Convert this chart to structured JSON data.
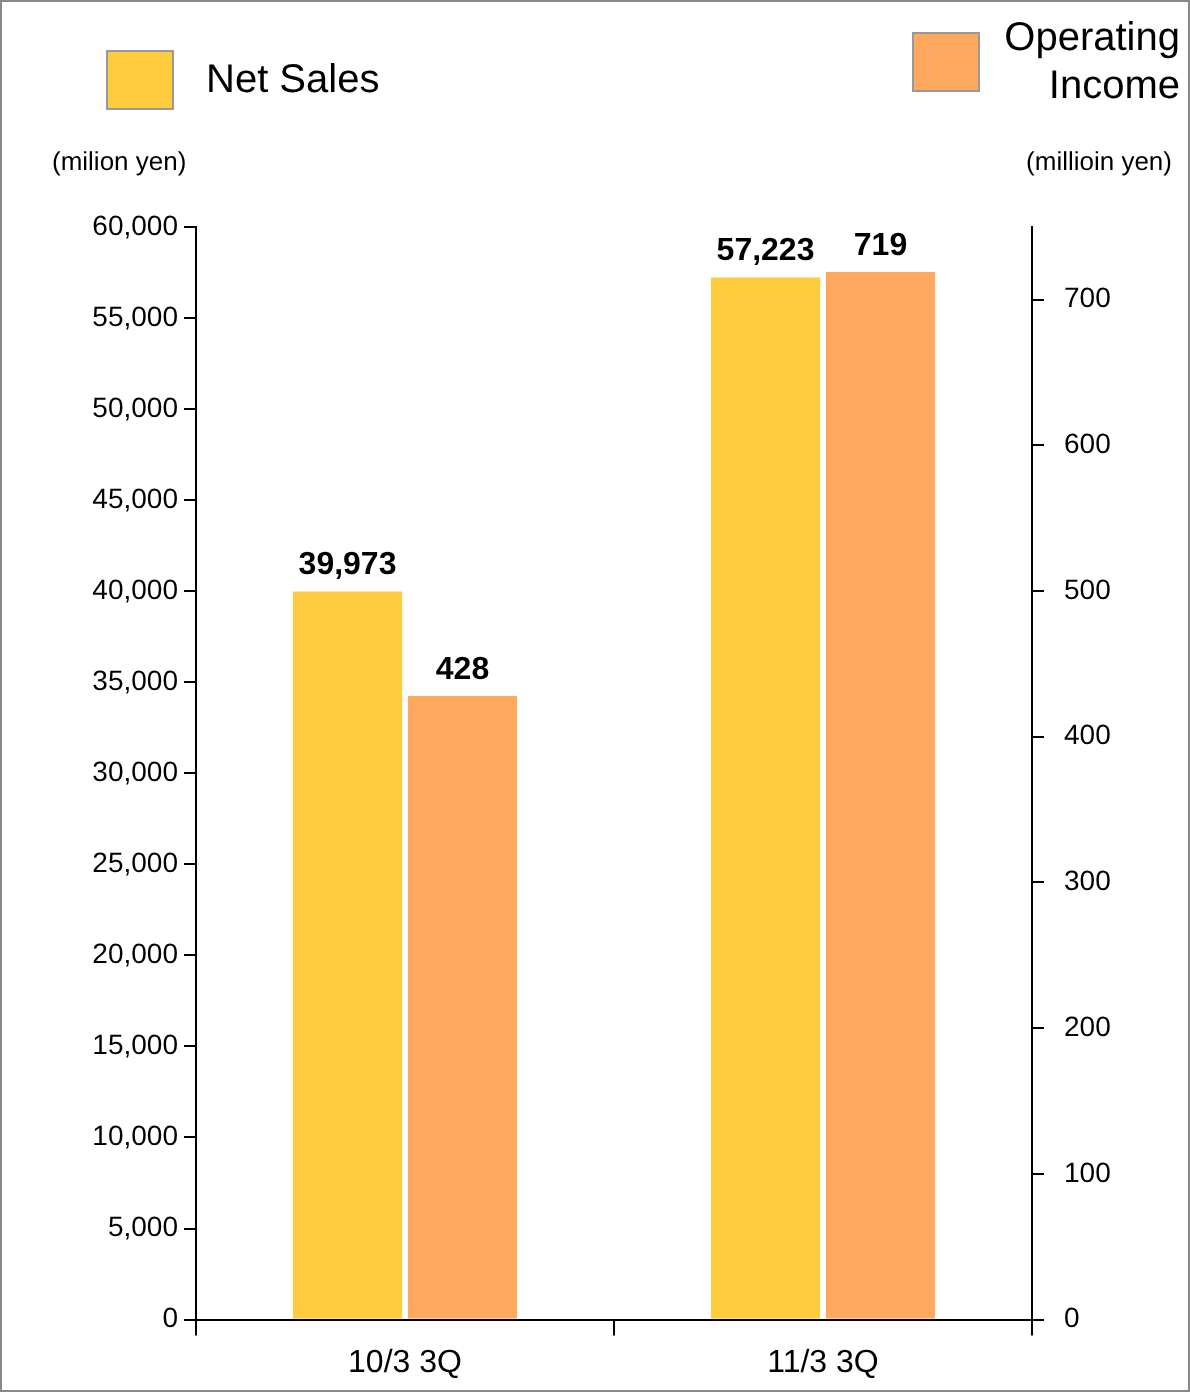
{
  "chart_data": {
    "type": "bar",
    "categories": [
      "10/3 3Q",
      "11/3 3Q"
    ],
    "series": [
      {
        "name": "Net Sales",
        "color": "#ffcc40",
        "values": [
          39973,
          57223
        ],
        "value_labels": [
          "39,973",
          "57,223"
        ]
      },
      {
        "name": "Operating Income",
        "color": "#ffa860",
        "values": [
          428,
          719
        ],
        "value_labels": [
          "428",
          "719"
        ],
        "axis": "y2"
      }
    ],
    "ylabel": "(milion yen)",
    "y2label": "(millioin yen)",
    "ylim": [
      0,
      60000
    ],
    "yticks": [
      0,
      {
        "value": 5000,
        "label": "5,000"
      },
      {
        "value": 10000,
        "label": "10,000"
      },
      {
        "value": 15000,
        "label": "15,000"
      },
      {
        "value": 20000,
        "label": "20,000"
      },
      {
        "value": 25000,
        "label": "25,000"
      },
      {
        "value": 30000,
        "label": "30,000"
      },
      {
        "value": 35000,
        "label": "35,000"
      },
      {
        "value": 40000,
        "label": "40,000"
      },
      {
        "value": 45000,
        "label": "45,000"
      },
      {
        "value": 50000,
        "label": "50,000"
      },
      {
        "value": 55000,
        "label": "55,000"
      },
      {
        "value": 60000,
        "label": "60,000"
      }
    ],
    "y2lim": [
      0,
      750
    ],
    "y2ticks": [
      0,
      100,
      200,
      300,
      400,
      500,
      600,
      700
    ],
    "grid": false,
    "legend": "top"
  }
}
